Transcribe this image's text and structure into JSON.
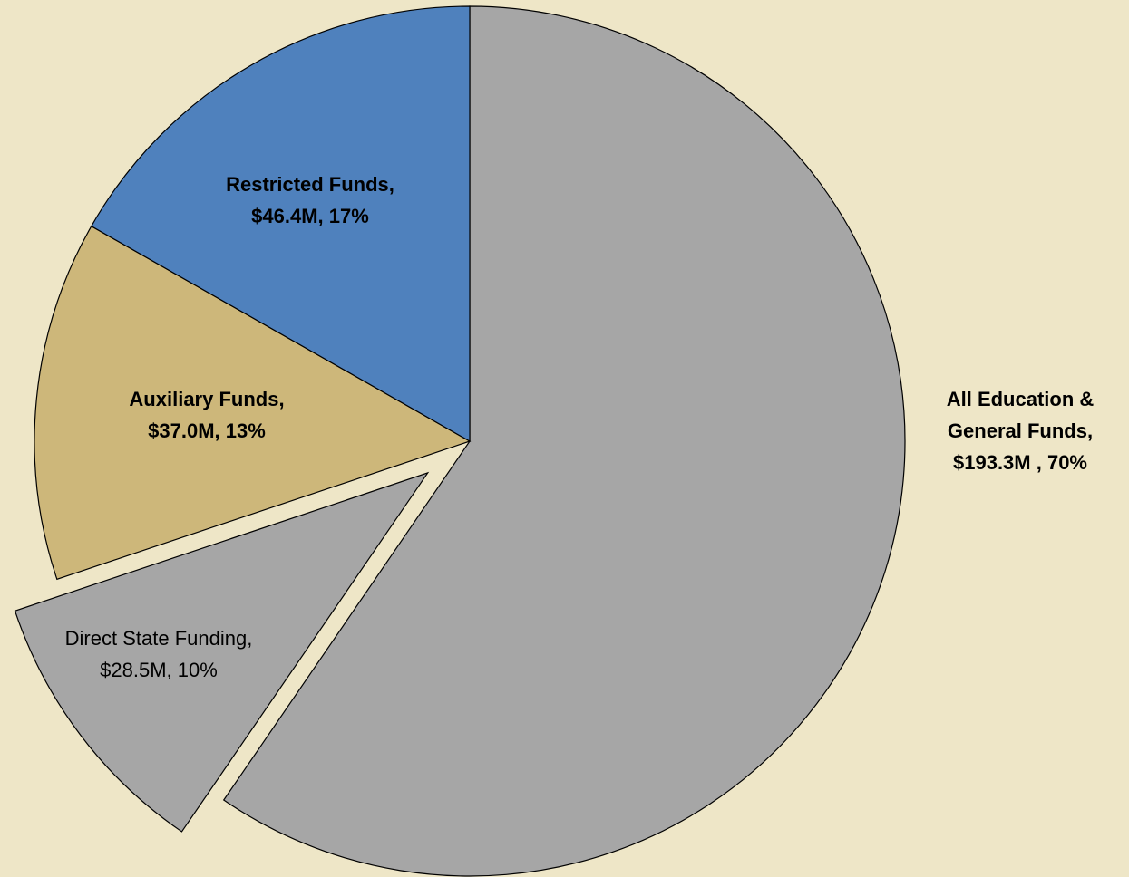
{
  "chart_data": {
    "type": "pie",
    "categories": [
      "All Education & General Funds",
      "Direct State Funding",
      "Auxiliary Funds",
      "Restricted Funds"
    ],
    "values": [
      193.3,
      28.5,
      37.0,
      46.4
    ],
    "value_labels": [
      [
        "All Education &",
        "General Funds,",
        "$193.3M , 70%"
      ],
      [
        "Direct State Funding,",
        "$28.5M, 10%"
      ],
      [
        "Auxiliary Funds,",
        "$37.0M, 13%"
      ],
      [
        "Restricted Funds,",
        "$46.4M, 17%"
      ]
    ],
    "within": [
      null,
      0,
      null,
      null
    ],
    "exploded": [
      false,
      true,
      false,
      false
    ],
    "label_bold": [
      true,
      false,
      true,
      true
    ],
    "colors": [
      "#a6a6a6",
      "#a6a6a6",
      "#cdb77a",
      "#4f81bd"
    ],
    "background": "#eee6c7"
  }
}
